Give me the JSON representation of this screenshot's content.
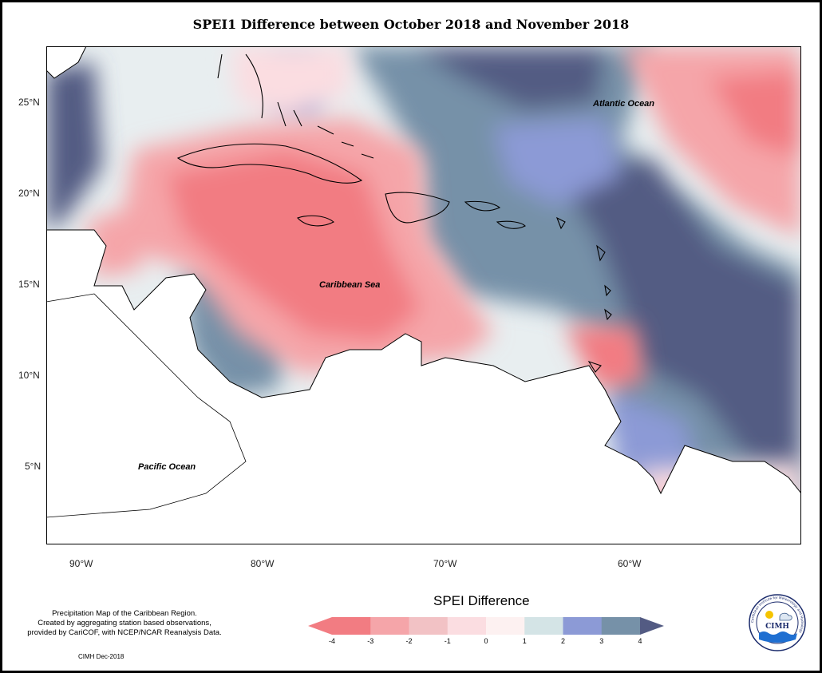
{
  "title": "SPEI1 Difference between October 2018 and November 2018",
  "map": {
    "labels": {
      "atlantic": "Atlantic Ocean",
      "caribbean": "Caribbean Sea",
      "pacific": "Pacific Ocean"
    },
    "lat_ticks": [
      "25°N",
      "20°N",
      "15°N",
      "10°N",
      "5°N"
    ],
    "lon_ticks": [
      "90°W",
      "80°W",
      "70°W",
      "60°W"
    ]
  },
  "legend": {
    "title": "SPEI Difference",
    "ticks": [
      "-4",
      "-3",
      "-2",
      "-1",
      "0",
      "1",
      "2",
      "3",
      "4"
    ],
    "colors": [
      "#f27c82",
      "#f5a5a9",
      "#f2c2c5",
      "#fbdde1",
      "#fdf1f1",
      "#d4e4e6",
      "#8c9ad6",
      "#7691a8",
      "#535b83"
    ]
  },
  "caption": {
    "line1": "Precipitation Map of the Caribbean Region.",
    "line2": "Created by aggregating station based observations,",
    "line3": "provided by CariCOF, with NCEP/NCAR Reanalysis Data."
  },
  "credit": "CIMH Dec-2018",
  "logo": {
    "text": "CIMH",
    "ring_text": "Caribbean Institute for Meteorology and Hydrology"
  }
}
